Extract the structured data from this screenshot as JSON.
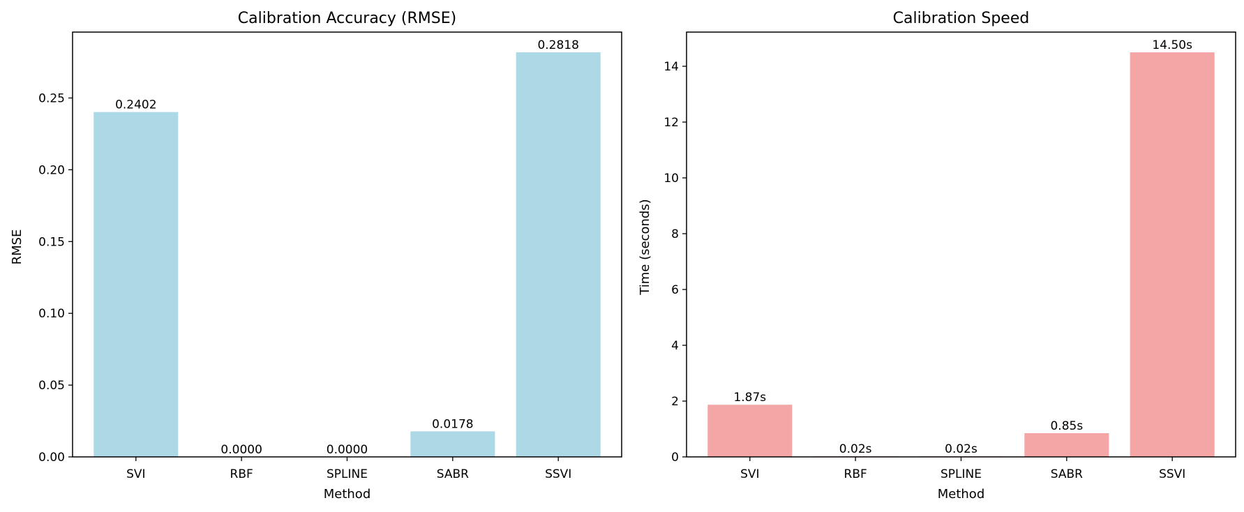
{
  "chart_data": [
    {
      "type": "bar",
      "title": "Calibration Accuracy (RMSE)",
      "xlabel": "Method",
      "ylabel": "RMSE",
      "categories": [
        "SVI",
        "RBF",
        "SPLINE",
        "SABR",
        "SSVI"
      ],
      "values": [
        0.2402,
        0.0,
        0.0,
        0.0178,
        0.2818
      ],
      "data_labels": [
        "0.2402",
        "0.0000",
        "0.0000",
        "0.0178",
        "0.2818"
      ],
      "ylim": [
        0,
        0.2959
      ],
      "yticks": [
        0,
        0.05,
        0.1,
        0.15,
        0.2,
        0.25
      ],
      "ytick_labels": [
        "0.00",
        "0.05",
        "0.10",
        "0.15",
        "0.20",
        "0.25"
      ],
      "bar_color": "#add8e6",
      "grid": false,
      "legend": "none"
    },
    {
      "type": "bar",
      "title": "Calibration Speed",
      "xlabel": "Method",
      "ylabel": "Time (seconds)",
      "categories": [
        "SVI",
        "RBF",
        "SPLINE",
        "SABR",
        "SSVI"
      ],
      "values": [
        1.87,
        0.02,
        0.02,
        0.85,
        14.5
      ],
      "data_labels": [
        "1.87s",
        "0.02s",
        "0.02s",
        "0.85s",
        "14.50s"
      ],
      "ylim": [
        0,
        15.225
      ],
      "yticks": [
        0,
        2,
        4,
        6,
        8,
        10,
        12,
        14
      ],
      "ytick_labels": [
        "0",
        "2",
        "4",
        "6",
        "8",
        "10",
        "12",
        "14"
      ],
      "bar_color": "#f4a6a6",
      "grid": false,
      "legend": "none"
    }
  ]
}
